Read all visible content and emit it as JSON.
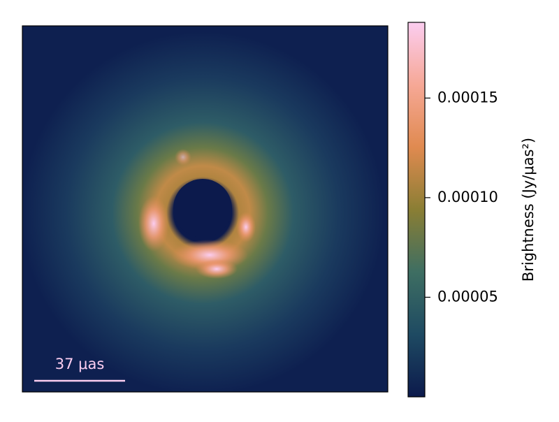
{
  "chart_data": {
    "type": "image",
    "colorbar_label": "Brightness (Jy/μas²)",
    "scale_bar_label": "37 μas",
    "clim": [
      0,
      0.000188
    ],
    "cticks": [
      5e-05,
      {
        "value": 0.0001,
        "label": "0.00010"
      },
      0.00015
    ],
    "colormap": [
      "#0c1a4c",
      "#1e4a62",
      "#3e6e62",
      "#8a7e34",
      "#e08a50",
      "#f6a896",
      "#fbcdf0"
    ]
  }
}
